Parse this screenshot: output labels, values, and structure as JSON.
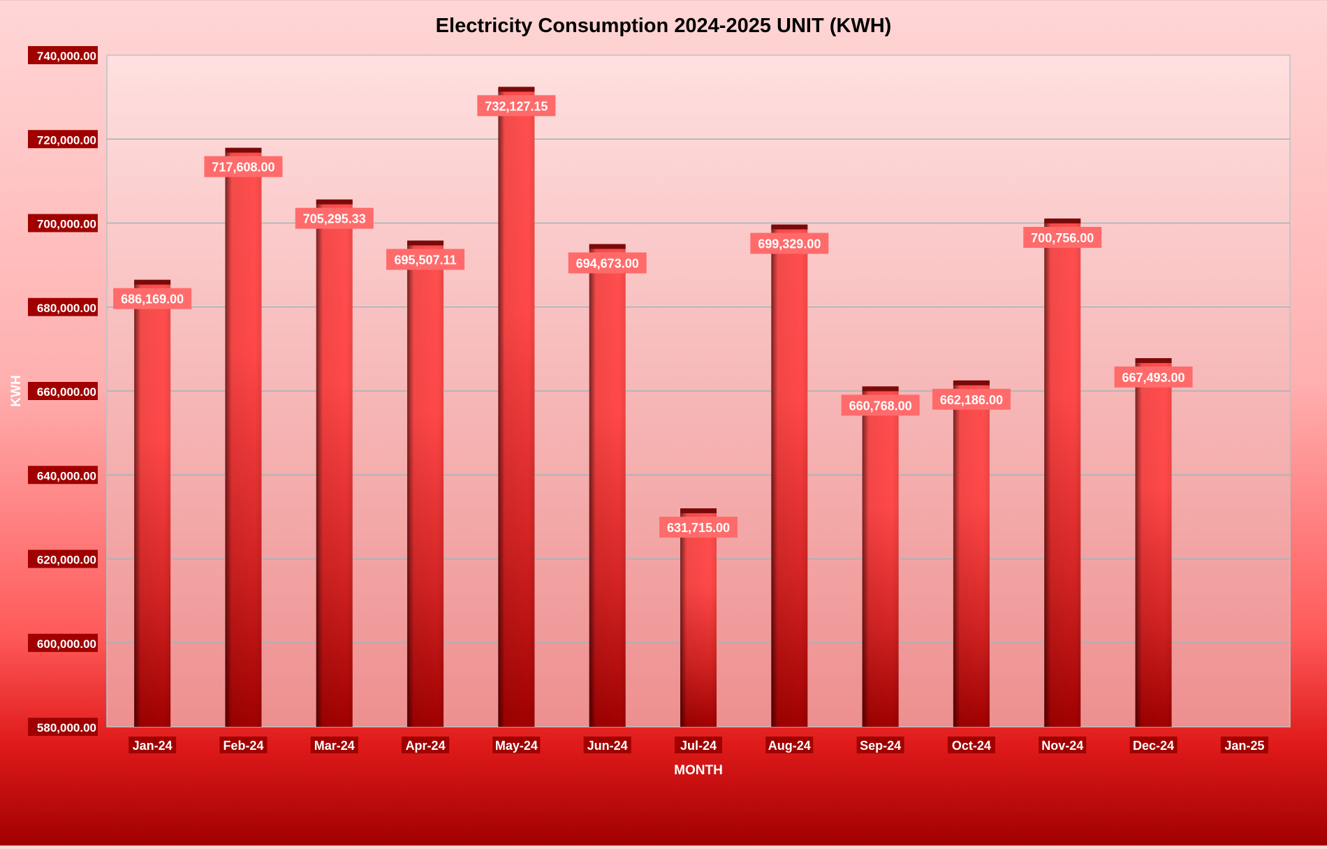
{
  "chart_data": {
    "type": "bar",
    "title": "Electricity Consumption 2024-2025 UNIT (KWH)",
    "xlabel": "MONTH",
    "ylabel": "KWH",
    "ylim": [
      580000,
      740000
    ],
    "yticks": [
      580000,
      600000,
      620000,
      640000,
      660000,
      680000,
      700000,
      720000,
      740000
    ],
    "ytick_labels": [
      "580,000.00",
      "600,000.00",
      "620,000.00",
      "640,000.00",
      "660,000.00",
      "680,000.00",
      "700,000.00",
      "720,000.00",
      "740,000.00"
    ],
    "categories": [
      "Jan-24",
      "Feb-24",
      "Mar-24",
      "Apr-24",
      "May-24",
      "Jun-24",
      "Jul-24",
      "Aug-24",
      "Sep-24",
      "Oct-24",
      "Nov-24",
      "Dec-24",
      "Jan-25"
    ],
    "values": [
      686169.0,
      717608.0,
      705295.33,
      695507.11,
      732127.15,
      694673.0,
      631715.0,
      699329.0,
      660768.0,
      662186.0,
      700756.0,
      667493.0,
      null
    ],
    "data_labels": [
      "686,169.00",
      "717,608.00",
      "705,295.33",
      "695,507.11",
      "732,127.15",
      "694,673.00",
      "631,715.00",
      "699,329.00",
      "660,768.00",
      "662,186.00",
      "700,756.00",
      "667,493.00",
      ""
    ],
    "grid": true,
    "legend": "none",
    "colors": {
      "bar": "#ff4a4a",
      "bar_dark": "#a00000",
      "data_label_bg": "#ff6b6b",
      "tick_label_bg": "#a00000",
      "gridline": "#9fb4b8"
    }
  }
}
